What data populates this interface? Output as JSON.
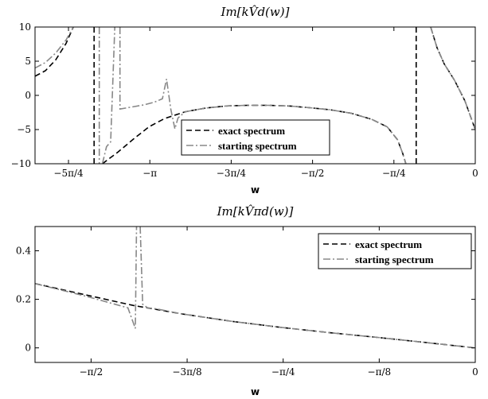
{
  "chart_data": [
    {
      "type": "line",
      "title": "Im[kV̂d(w)]",
      "xlabel": "w",
      "ylabel": "",
      "xlim": [
        -4.25,
        0
      ],
      "ylim": [
        -10,
        10
      ],
      "grid": false,
      "legend_position": "bottom-center",
      "x_ticks": [
        {
          "value": -3.927,
          "label": "−5π/4"
        },
        {
          "value": -3.1416,
          "label": "−π"
        },
        {
          "value": -2.3562,
          "label": "−3π/4"
        },
        {
          "value": -1.5708,
          "label": "−π/2"
        },
        {
          "value": -0.7854,
          "label": "−π/4"
        },
        {
          "value": 0,
          "label": "0"
        }
      ],
      "y_ticks": [
        {
          "value": 10,
          "label": "10"
        },
        {
          "value": 5,
          "label": "5"
        },
        {
          "value": 0,
          "label": "0"
        },
        {
          "value": -5,
          "label": "−5"
        },
        {
          "value": -10,
          "label": "−10"
        }
      ],
      "series": [
        {
          "name": "exact spectrum",
          "color": "#000000",
          "dash": "dashed",
          "segments": [
            [
              [
                -4.25,
                2.8
              ],
              [
                -4.15,
                3.6
              ],
              [
                -4.05,
                5.2
              ],
              [
                -3.95,
                7.6
              ],
              [
                -3.88,
                10
              ]
            ],
            [
              [
                -3.68,
                10
              ],
              [
                -3.68,
                -10
              ]
            ],
            [
              [
                -3.6,
                -10
              ],
              [
                -3.45,
                -8.3
              ],
              [
                -3.3,
                -6.4
              ],
              [
                -3.15,
                -4.6
              ],
              [
                -3.0,
                -3.4
              ],
              [
                -2.8,
                -2.4
              ],
              [
                -2.6,
                -1.85
              ],
              [
                -2.4,
                -1.55
              ],
              [
                -2.2,
                -1.45
              ],
              [
                -2.0,
                -1.45
              ],
              [
                -1.8,
                -1.55
              ],
              [
                -1.6,
                -1.8
              ],
              [
                -1.4,
                -2.1
              ],
              [
                -1.2,
                -2.6
              ],
              [
                -1.0,
                -3.5
              ],
              [
                -0.85,
                -4.6
              ],
              [
                -0.75,
                -6.5
              ],
              [
                -0.7,
                -8.5
              ],
              [
                -0.67,
                -10
              ]
            ],
            [
              [
                -0.57,
                -10
              ],
              [
                -0.57,
                10
              ]
            ],
            [
              [
                -0.43,
                10
              ],
              [
                -0.37,
                7.0
              ],
              [
                -0.3,
                4.6
              ],
              [
                -0.2,
                2.2
              ],
              [
                -0.1,
                -0.8
              ],
              [
                0,
                -5.0
              ]
            ]
          ]
        },
        {
          "name": "starting spectrum",
          "color": "#888888",
          "dash": "dashdot",
          "segments": [
            [
              [
                -4.25,
                4.0
              ],
              [
                -4.15,
                4.8
              ],
              [
                -4.05,
                6.2
              ],
              [
                -3.95,
                8.1
              ],
              [
                -3.88,
                10
              ]
            ],
            [
              [
                -3.63,
                10
              ],
              [
                -3.63,
                -10
              ]
            ],
            [
              [
                -3.6,
                -10
              ],
              [
                -3.56,
                -7.5
              ],
              [
                -3.52,
                -6.8
              ],
              [
                -3.48,
                10
              ]
            ],
            [
              [
                -3.43,
                10
              ],
              [
                -3.43,
                -2.0
              ],
              [
                -3.2,
                -1.4
              ],
              [
                -3.1,
                -1.0
              ],
              [
                -3.02,
                -0.5
              ],
              [
                -2.98,
                2.4
              ],
              [
                -2.94,
                -2.0
              ],
              [
                -2.9,
                -4.9
              ],
              [
                -2.87,
                -3.3
              ],
              [
                -2.8,
                -2.4
              ],
              [
                -2.6,
                -1.85
              ],
              [
                -2.4,
                -1.55
              ],
              [
                -2.2,
                -1.45
              ],
              [
                -2.0,
                -1.45
              ],
              [
                -1.8,
                -1.55
              ],
              [
                -1.6,
                -1.8
              ],
              [
                -1.4,
                -2.1
              ],
              [
                -1.2,
                -2.6
              ],
              [
                -1.0,
                -3.5
              ],
              [
                -0.85,
                -4.6
              ],
              [
                -0.75,
                -6.5
              ],
              [
                -0.7,
                -8.5
              ],
              [
                -0.67,
                -10
              ]
            ],
            [
              [
                -0.43,
                10
              ],
              [
                -0.37,
                7.0
              ],
              [
                -0.3,
                4.6
              ],
              [
                -0.2,
                2.2
              ],
              [
                -0.1,
                -0.8
              ],
              [
                0,
                -5.0
              ]
            ]
          ]
        }
      ]
    },
    {
      "type": "line",
      "title": "Im[kV̂πd(w)]",
      "xlabel": "w",
      "ylabel": "",
      "xlim": [
        -1.8,
        0
      ],
      "ylim": [
        -0.06,
        0.5
      ],
      "grid": false,
      "legend_position": "top-right",
      "x_ticks": [
        {
          "value": -1.5708,
          "label": "−π/2"
        },
        {
          "value": -1.1781,
          "label": "−3π/8"
        },
        {
          "value": -0.7854,
          "label": "−π/4"
        },
        {
          "value": -0.3927,
          "label": "−π/8"
        },
        {
          "value": 0,
          "label": "0"
        }
      ],
      "y_ticks": [
        {
          "value": 0.4,
          "label": "0.4"
        },
        {
          "value": 0.2,
          "label": "0.2"
        },
        {
          "value": 0,
          "label": "0"
        }
      ],
      "series": [
        {
          "name": "exact spectrum",
          "color": "#000000",
          "dash": "dashed",
          "segments": [
            [
              [
                -1.8,
                0.265
              ],
              [
                -1.6,
                0.22
              ],
              [
                -1.4,
                0.175
              ],
              [
                -1.2,
                0.14
              ],
              [
                -1.0,
                0.11
              ],
              [
                -0.8,
                0.085
              ],
              [
                -0.6,
                0.063
              ],
              [
                -0.4,
                0.043
              ],
              [
                -0.2,
                0.022
              ],
              [
                0,
                0.0
              ]
            ]
          ]
        },
        {
          "name": "starting spectrum",
          "color": "#888888",
          "dash": "dashdot",
          "segments": [
            [
              [
                -1.8,
                0.265
              ],
              [
                -1.6,
                0.215
              ],
              [
                -1.42,
                0.165
              ],
              [
                -1.39,
                0.08
              ],
              [
                -1.385,
                0.5
              ]
            ],
            [
              [
                -1.37,
                0.5
              ],
              [
                -1.36,
                0.18
              ],
              [
                -1.34,
                0.165
              ],
              [
                -1.3,
                0.16
              ],
              [
                -1.2,
                0.14
              ],
              [
                -1.0,
                0.11
              ],
              [
                -0.8,
                0.085
              ],
              [
                -0.6,
                0.063
              ],
              [
                -0.4,
                0.043
              ],
              [
                -0.2,
                0.022
              ],
              [
                0,
                0.0
              ]
            ]
          ]
        }
      ]
    }
  ]
}
